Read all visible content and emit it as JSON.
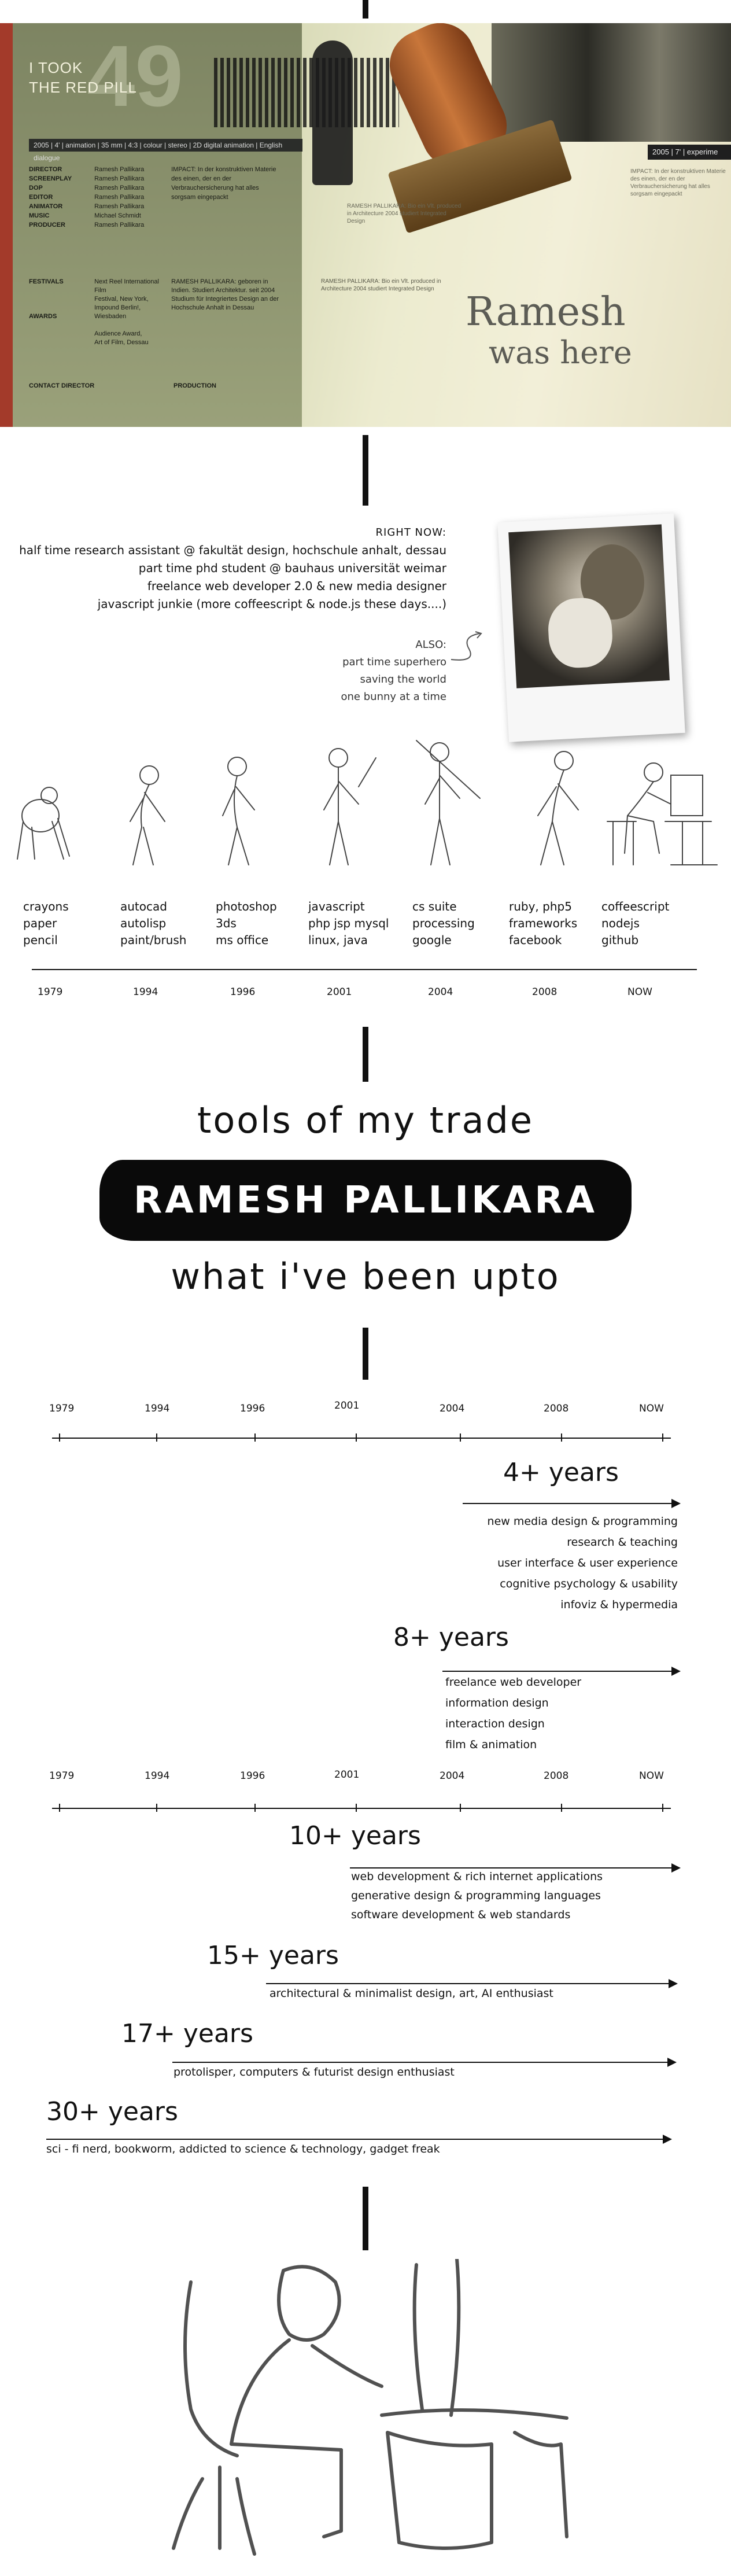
{
  "hero": {
    "redpill": [
      "I TOOK",
      "THE RED PILL"
    ],
    "bignumber": "49",
    "meta_bar": "2005 | 4' | animation | 35 mm | 4:3 | colour | stereo | 2D digital animation | English dialogue",
    "crew_roles": [
      "DIRECTOR",
      "SCREENPLAY",
      "DOP",
      "EDITOR",
      "ANIMATOR",
      "MUSIC",
      "PRODUCER"
    ],
    "crew_names": [
      "Ramesh Pallikara",
      "Ramesh Pallikara",
      "Ramesh Pallikara",
      "Ramesh Pallikara",
      "Ramesh Pallikara",
      "Michael Schmidt",
      "Ramesh Pallikara"
    ],
    "festivals_label": "FESTIVALS",
    "festivals": [
      "Next Reel International Film",
      "Festival, New York,",
      "Impound Berlin!, Wiesbaden"
    ],
    "awards_label": "AWARDS",
    "awards": [
      "Audience Award,",
      "Art of Film, Dessau"
    ],
    "contact_director": "CONTACT DIRECTOR",
    "production": "PRODUCTION",
    "year_bar": "2005 | 7' | experime",
    "stamp_line1": "Ramesh",
    "stamp_line2": "was here",
    "impact_text": "IMPACT: In der konstruktiven Materie des einen, der en der Verbrauchersicherung hat alles sorgsam eingepackt",
    "bio_text": "RAMESH PALLIKARA: geboren in Indien. Studiert Architektur. seit 2004 Studium für Integriertes Design an der Hochschule Anhalt in Dessau",
    "side_text": "RAMESH PALLIKARA: Bio ein Vlt. produced in Architecture 2004 studiert Integrated Design"
  },
  "right_now": {
    "title": "RIGHT NOW:",
    "items": [
      "half time research assistant @ fakultät design, hochschule anhalt, dessau",
      "part time phd student @ bauhaus universität weimar",
      "freelance web developer 2.0 & new media designer",
      "javascript junkie (more coffeescript & node.js these days....)"
    ],
    "also_title": "ALSO:",
    "also_items": [
      "part time superhero",
      "saving the world",
      "one bunny at a time"
    ]
  },
  "evolution": {
    "tools": [
      [
        "crayons",
        "paper",
        "pencil"
      ],
      [
        "autocad",
        "autolisp",
        "paint/brush"
      ],
      [
        "photoshop",
        "3ds",
        "ms office"
      ],
      [
        "javascript",
        "php jsp mysql",
        "linux, java"
      ],
      [
        "cs suite",
        "processing",
        "google"
      ],
      [
        "ruby, php5",
        "frameworks",
        "facebook"
      ],
      [
        "coffeescript",
        "nodejs",
        "github"
      ]
    ],
    "years": [
      "1979",
      "1994",
      "1996",
      "2001",
      "2004",
      "2008",
      "NOW"
    ]
  },
  "headings": {
    "tools": "tools of my trade",
    "name": "RAMESH PALLIKARA",
    "upto": "what i've been upto"
  },
  "timeline": {
    "years": [
      "1979",
      "1994",
      "1996",
      "2001",
      "2004",
      "2008",
      "NOW"
    ],
    "groups": [
      {
        "years": "4+ years",
        "skills": [
          "new media design & programming",
          "research & teaching",
          "user interface & user experience",
          "cognitive psychology & usability",
          "infoviz & hypermedia"
        ]
      },
      {
        "years": "8+ years",
        "skills": [
          "freelance web developer",
          "information design",
          "interaction design",
          "film & animation"
        ]
      },
      {
        "years": "10+ years",
        "skills": [
          "web development & rich internet applications",
          "generative design & programming languages",
          "software development & web standards"
        ]
      },
      {
        "years": "15+ years",
        "skills": [
          "architectural & minimalist design, art, AI enthusiast"
        ]
      },
      {
        "years": "17+ years",
        "skills": [
          "protolisper, computers & futurist design  enthusiast"
        ]
      },
      {
        "years": "30+ years",
        "skills": [
          "sci - fi nerd, bookworm, addicted to science & technology, gadget freak"
        ]
      }
    ]
  }
}
